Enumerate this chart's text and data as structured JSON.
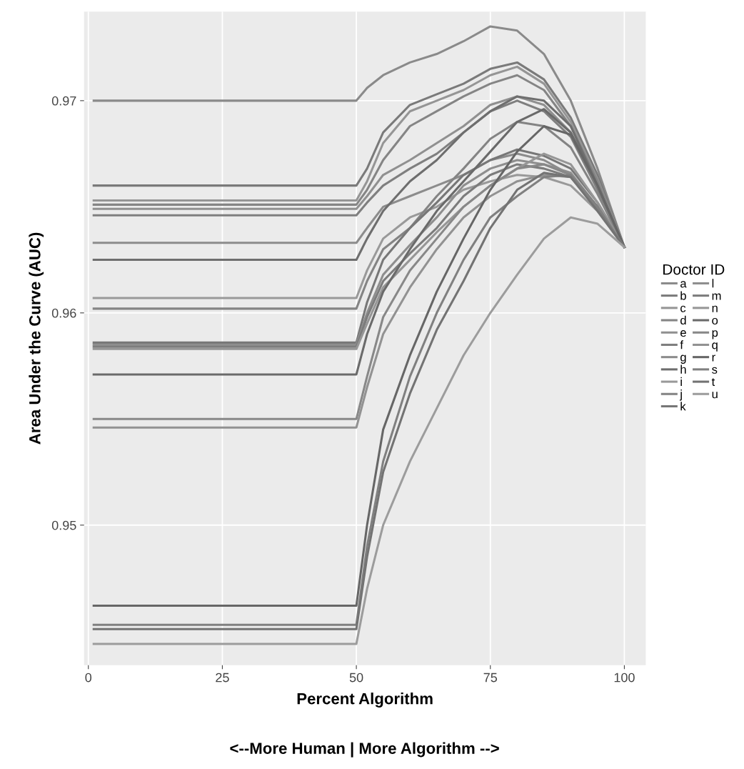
{
  "chart_data": {
    "type": "line",
    "xlabel": "Percent Algorithm",
    "ylabel": "Area Under the Curve (AUC)",
    "legend_title": "Doctor ID",
    "annotations": [
      "<--More Human | More Algorithm -->"
    ],
    "x": [
      1,
      50,
      52,
      55,
      60,
      65,
      70,
      75,
      80,
      85,
      90,
      95,
      100
    ],
    "xlim": [
      -0.8,
      104
    ],
    "xticks": [
      0,
      25,
      50,
      75,
      100
    ],
    "ylim": [
      0.9434,
      0.9742
    ],
    "yticks": [
      0.95,
      0.96,
      0.97
    ],
    "grid": true,
    "legend": "right",
    "marker": "none",
    "line_style": "solid",
    "series": [
      {
        "name": "a",
        "color": "#8a8a8a",
        "values": [
          0.97,
          0.97,
          0.9706,
          0.9712,
          0.9718,
          0.9722,
          0.9728,
          0.9735,
          0.9733,
          0.9722,
          0.97,
          0.9668,
          0.9631
        ]
      },
      {
        "name": "b",
        "color": "#7a7a7a",
        "values": [
          0.966,
          0.966,
          0.9668,
          0.9685,
          0.9698,
          0.9703,
          0.9708,
          0.9715,
          0.9718,
          0.971,
          0.9692,
          0.9665,
          0.9631
        ]
      },
      {
        "name": "c",
        "color": "#959595",
        "values": [
          0.9653,
          0.9653,
          0.9662,
          0.968,
          0.9695,
          0.97,
          0.9705,
          0.9712,
          0.9716,
          0.9708,
          0.969,
          0.9663,
          0.9631
        ]
      },
      {
        "name": "d",
        "color": "#858585",
        "values": [
          0.9651,
          0.9651,
          0.9658,
          0.9672,
          0.9688,
          0.9695,
          0.9702,
          0.9708,
          0.9712,
          0.9705,
          0.9688,
          0.9662,
          0.9631
        ]
      },
      {
        "name": "e",
        "color": "#909090",
        "values": [
          0.9649,
          0.9649,
          0.9655,
          0.9665,
          0.9672,
          0.968,
          0.9688,
          0.9698,
          0.9702,
          0.9698,
          0.9685,
          0.966,
          0.9631
        ]
      },
      {
        "name": "f",
        "color": "#7f7f7f",
        "values": [
          0.9646,
          0.9646,
          0.9652,
          0.966,
          0.9668,
          0.9675,
          0.9685,
          0.9695,
          0.97,
          0.9695,
          0.9683,
          0.9658,
          0.9631
        ]
      },
      {
        "name": "g",
        "color": "#8c8c8c",
        "values": [
          0.9633,
          0.9633,
          0.964,
          0.965,
          0.9655,
          0.966,
          0.9665,
          0.9672,
          0.9675,
          0.9672,
          0.9665,
          0.965,
          0.9631
        ]
      },
      {
        "name": "h",
        "color": "#6e6e6e",
        "values": [
          0.9625,
          0.9625,
          0.9635,
          0.9648,
          0.9662,
          0.9672,
          0.9685,
          0.9695,
          0.9702,
          0.97,
          0.9688,
          0.966,
          0.9631
        ]
      },
      {
        "name": "i",
        "color": "#999999",
        "values": [
          0.9607,
          0.9607,
          0.962,
          0.9635,
          0.9645,
          0.965,
          0.9658,
          0.9662,
          0.9665,
          0.9664,
          0.966,
          0.9648,
          0.9631
        ]
      },
      {
        "name": "j",
        "color": "#848484",
        "values": [
          0.9602,
          0.9602,
          0.9615,
          0.963,
          0.964,
          0.9655,
          0.9668,
          0.9682,
          0.969,
          0.9688,
          0.9678,
          0.9656,
          0.9631
        ]
      },
      {
        "name": "k",
        "color": "#777777",
        "values": [
          0.9586,
          0.9586,
          0.9605,
          0.9625,
          0.964,
          0.9652,
          0.9665,
          0.9672,
          0.9677,
          0.9674,
          0.9668,
          0.9652,
          0.9631
        ]
      },
      {
        "name": "l",
        "color": "#8e8e8e",
        "values": [
          0.9585,
          0.9585,
          0.96,
          0.9618,
          0.9632,
          0.9645,
          0.966,
          0.9668,
          0.9672,
          0.967,
          0.9666,
          0.965,
          0.9631
        ]
      },
      {
        "name": "m",
        "color": "#7c7c7c",
        "values": [
          0.9584,
          0.9584,
          0.9598,
          0.9615,
          0.9628,
          0.964,
          0.9655,
          0.9665,
          0.967,
          0.9668,
          0.9664,
          0.9649,
          0.9631
        ]
      },
      {
        "name": "n",
        "color": "#969696",
        "values": [
          0.9583,
          0.9583,
          0.9595,
          0.9612,
          0.9625,
          0.9638,
          0.965,
          0.966,
          0.9668,
          0.9675,
          0.967,
          0.9652,
          0.9631
        ]
      },
      {
        "name": "o",
        "color": "#6a6a6a",
        "values": [
          0.9571,
          0.9571,
          0.959,
          0.961,
          0.963,
          0.9648,
          0.9662,
          0.9676,
          0.969,
          0.9696,
          0.9685,
          0.966,
          0.9631
        ]
      },
      {
        "name": "p",
        "color": "#888888",
        "values": [
          0.955,
          0.955,
          0.957,
          0.9598,
          0.962,
          0.9635,
          0.965,
          0.966,
          0.9668,
          0.967,
          0.9665,
          0.965,
          0.9631
        ]
      },
      {
        "name": "q",
        "color": "#929292",
        "values": [
          0.9546,
          0.9546,
          0.9565,
          0.959,
          0.9612,
          0.963,
          0.9645,
          0.9655,
          0.9662,
          0.9665,
          0.9664,
          0.965,
          0.9631
        ]
      },
      {
        "name": "r",
        "color": "#666666",
        "values": [
          0.9462,
          0.9462,
          0.95,
          0.9545,
          0.958,
          0.961,
          0.9635,
          0.9658,
          0.9676,
          0.9688,
          0.9684,
          0.966,
          0.9631
        ]
      },
      {
        "name": "s",
        "color": "#808080",
        "values": [
          0.9453,
          0.9453,
          0.949,
          0.953,
          0.957,
          0.96,
          0.9625,
          0.9645,
          0.9655,
          0.9664,
          0.9665,
          0.965,
          0.9631
        ]
      },
      {
        "name": "t",
        "color": "#737373",
        "values": [
          0.9451,
          0.9451,
          0.9485,
          0.9525,
          0.9562,
          0.9592,
          0.9615,
          0.964,
          0.9658,
          0.9666,
          0.9664,
          0.9648,
          0.9631
        ]
      },
      {
        "name": "u",
        "color": "#9c9c9c",
        "values": [
          0.9444,
          0.9444,
          0.947,
          0.95,
          0.953,
          0.9555,
          0.958,
          0.96,
          0.9618,
          0.9635,
          0.9645,
          0.9642,
          0.9631
        ]
      }
    ]
  }
}
